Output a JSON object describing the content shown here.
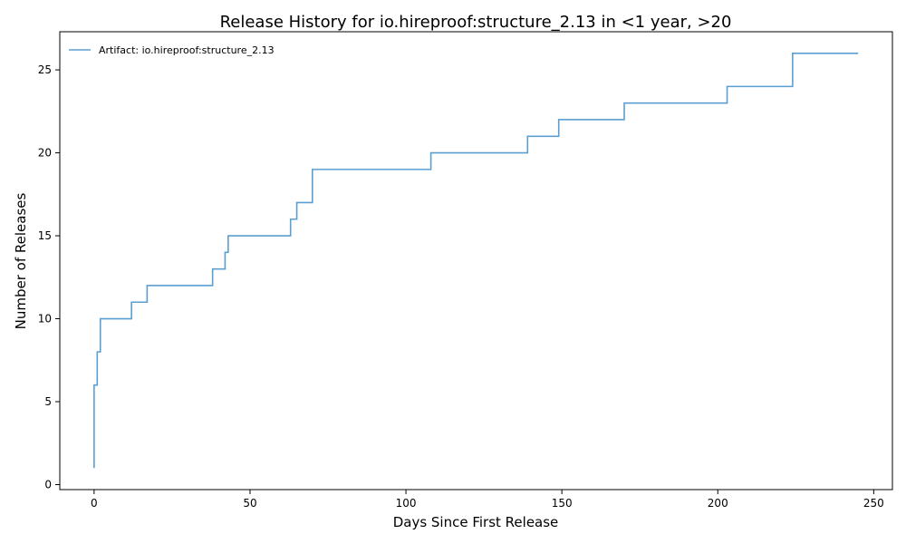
{
  "chart_data": {
    "type": "line",
    "drawstyle": "steps-post",
    "title": "Release History for io.hireproof:structure_2.13 in <1 year, >20",
    "xlabel": "Days Since First Release",
    "ylabel": "Number of Releases",
    "xlim": [
      -11,
      256
    ],
    "ylim": [
      -0.3,
      27.3
    ],
    "xticks": [
      0,
      50,
      100,
      150,
      200,
      250
    ],
    "yticks": [
      0,
      5,
      10,
      15,
      20,
      25
    ],
    "grid": false,
    "legend_position": "top-left",
    "series": [
      {
        "name": "Artifact: io.hireproof:structure_2.13",
        "color": "#5b9fd0",
        "x": [
          0,
          0,
          0,
          0,
          0,
          0,
          1,
          1,
          2,
          2,
          12,
          17,
          38,
          42,
          43,
          63,
          64,
          65,
          70,
          108,
          139,
          149,
          170,
          203,
          224,
          224,
          245
        ],
        "y": [
          1,
          2,
          3,
          4,
          5,
          6,
          7,
          8,
          9,
          10,
          11,
          12,
          13,
          14,
          15,
          16,
          16,
          17,
          19,
          20,
          21,
          22,
          23,
          24,
          25,
          26,
          26
        ]
      }
    ]
  }
}
